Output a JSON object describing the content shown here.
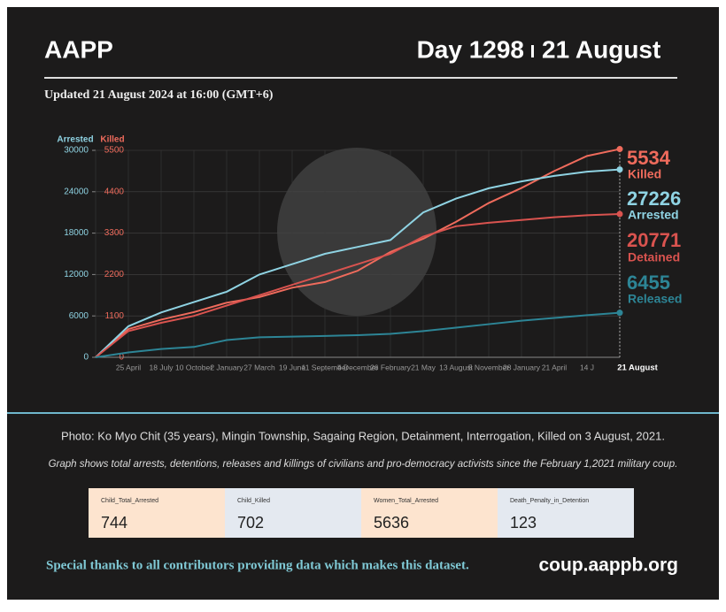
{
  "header": {
    "brand": "AAPP",
    "day": "Day 1298",
    "date": "21 August",
    "updated": "Updated 21 August 2024 at 16:00 (GMT+6)"
  },
  "chart_data": {
    "type": "line",
    "ylabel": "Arrested",
    "y2label": "Killed",
    "categories": [
      null,
      "25 April",
      "18 July",
      "10 October",
      "2 January",
      "27 March",
      "19 June",
      "11 September",
      "4 December",
      "26 February",
      "21 May",
      "13 August",
      "5 November",
      "28 January",
      "21 April",
      "14 J",
      "21 August"
    ],
    "ylim": [
      0,
      30000
    ],
    "yticks": [
      0,
      6000,
      12000,
      18000,
      24000,
      30000
    ],
    "y2lim": [
      0,
      5500
    ],
    "y2ticks": [
      0,
      1100,
      2200,
      3300,
      4400,
      5500
    ],
    "grid": true,
    "series": [
      {
        "name": "Killed",
        "color": "#ef6b5c",
        "axis": "y2",
        "values": [
          0,
          750,
          1000,
          1200,
          1450,
          1600,
          1850,
          2000,
          2300,
          2800,
          3150,
          3600,
          4100,
          4500,
          4950,
          5350,
          5534
        ]
      },
      {
        "name": "Arrested",
        "color": "#8fd3e3",
        "values": [
          0,
          4500,
          6500,
          8000,
          9500,
          12000,
          13500,
          15000,
          16000,
          17000,
          21000,
          23000,
          24500,
          25500,
          26300,
          26900,
          27226
        ]
      },
      {
        "name": "Detained",
        "color": "#d9534f",
        "values": [
          0,
          3800,
          5000,
          6000,
          7500,
          9000,
          10500,
          12000,
          13500,
          15000,
          17500,
          19000,
          19500,
          19900,
          20300,
          20600,
          20771
        ]
      },
      {
        "name": "Released",
        "color": "#2d8596",
        "values": [
          0,
          700,
          1200,
          1500,
          2500,
          2900,
          3000,
          3100,
          3200,
          3400,
          3800,
          4300,
          4800,
          5300,
          5700,
          6100,
          6455
        ]
      }
    ]
  },
  "caption": "Photo: Ko Myo Chit (35 years), Mingin Township, Sagaing Region, Detainment, Interrogation, Killed on 3 August, 2021.",
  "note": "Graph shows total arrests, detentions, releases and killings of civilians and pro-democracy activists since the February 1,2021 military coup.",
  "stats": [
    {
      "label": "Child_Total_Arrested",
      "value": 744
    },
    {
      "label": "Child_Killed",
      "value": 702
    },
    {
      "label": "Women_Total_Arrested",
      "value": 5636
    },
    {
      "label": "Death_Penalty_in_Detention",
      "value": 123
    }
  ],
  "footer": {
    "thanks": "Special thanks to all contributors providing data which makes this dataset.",
    "url": "coup.aappb.org"
  }
}
